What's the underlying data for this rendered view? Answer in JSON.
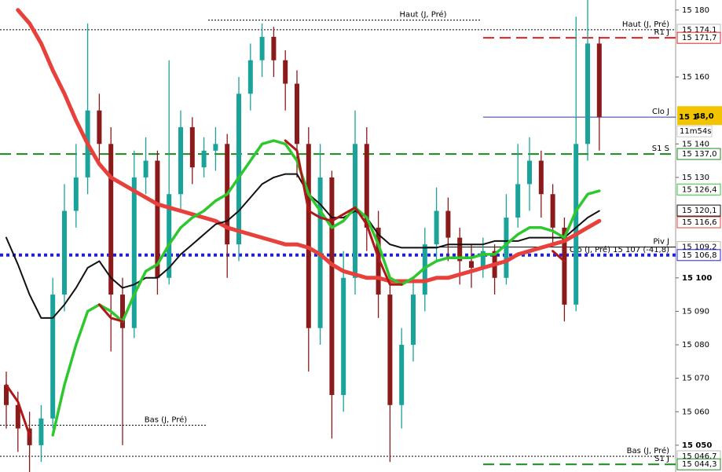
{
  "chart_data": {
    "type": "candlestick",
    "ylim": [
      15042,
      15183
    ],
    "yticks": [
      {
        "value": 15180,
        "label": "15 180"
      },
      {
        "value": 15160,
        "label": "15 160"
      },
      {
        "value": 15140,
        "label": "15 140"
      },
      {
        "value": 15130,
        "label": "15 130"
      },
      {
        "value": 15100,
        "label": "15 100"
      },
      {
        "value": 15090,
        "label": "15 090"
      },
      {
        "value": 15080,
        "label": "15 080"
      },
      {
        "value": 15070,
        "label": "15 070"
      },
      {
        "value": 15060,
        "label": "15 060"
      },
      {
        "value": 15050,
        "label": "15 050"
      }
    ],
    "up_color": "#1aa39a",
    "down_color": "#8b1a1a",
    "ohlc": {
      "open": [
        15068,
        15062,
        15055,
        15050,
        15058,
        15095,
        15120,
        15130,
        15150,
        15140,
        15095,
        15085,
        15130,
        15135,
        15100,
        15125,
        15145,
        15133,
        15138,
        15140,
        15110,
        15155,
        15165,
        15172,
        15165,
        15158,
        15140,
        15085,
        15130,
        15065,
        15100,
        15140,
        15115,
        15095,
        15062,
        15080,
        15095,
        15110,
        15120,
        15112,
        15105,
        15103,
        15108,
        15100,
        15118,
        15128,
        15135,
        15125,
        15115,
        15092,
        15140,
        15170
      ],
      "high": [
        15072,
        15066,
        15060,
        15062,
        15100,
        15128,
        15140,
        15176,
        15155,
        15145,
        15100,
        15138,
        15142,
        15138,
        15165,
        15150,
        15148,
        15142,
        15145,
        15143,
        15160,
        15170,
        15176,
        15175,
        15168,
        15162,
        15145,
        15140,
        15132,
        15108,
        15150,
        15145,
        15120,
        15100,
        15085,
        15100,
        15115,
        15127,
        15124,
        15115,
        15110,
        15112,
        15110,
        15125,
        15140,
        15142,
        15138,
        15128,
        15118,
        15178,
        15183,
        15172
      ],
      "low": [
        15055,
        15048,
        15042,
        15045,
        15055,
        15090,
        15115,
        15125,
        15135,
        15078,
        15050,
        15082,
        15125,
        15095,
        15098,
        15120,
        15128,
        15130,
        15132,
        15100,
        15105,
        15150,
        15160,
        15160,
        15150,
        15130,
        15072,
        15080,
        15052,
        15060,
        15095,
        15108,
        15088,
        15045,
        15055,
        15075,
        15090,
        15105,
        15105,
        15098,
        15097,
        15100,
        15095,
        15098,
        15115,
        15120,
        15118,
        15110,
        15087,
        15090,
        15135,
        15138
      ],
      "close": [
        15062,
        15055,
        15050,
        15058,
        15095,
        15120,
        15130,
        15150,
        15140,
        15095,
        15085,
        15130,
        15135,
        15100,
        15125,
        15145,
        15133,
        15138,
        15140,
        15110,
        15155,
        15165,
        15172,
        15165,
        15158,
        15140,
        15085,
        15130,
        15065,
        15100,
        15140,
        15115,
        15095,
        15062,
        15080,
        15095,
        15110,
        15120,
        15112,
        15105,
        15103,
        15108,
        15100,
        15118,
        15128,
        15135,
        15125,
        15115,
        15092,
        15140,
        15170,
        15148
      ]
    },
    "ma": [
      {
        "color": "#e8403a",
        "width": 5,
        "last_value": 15116.6,
        "last_label": "15 116,6",
        "values": [
          null,
          15180,
          15176,
          15170,
          15162,
          15155,
          15147,
          15140,
          15134,
          15130,
          15128,
          15126,
          15124,
          15122,
          15121,
          15120,
          15119,
          15118,
          15117,
          15115,
          15114,
          15113,
          15112,
          15111,
          15110,
          15110,
          15109,
          15107,
          15104,
          15102,
          15101,
          15100,
          15100,
          15099,
          15099,
          15099,
          15099,
          15100,
          15100,
          15101,
          15102,
          15103,
          15104,
          15105,
          15107,
          15108,
          15109,
          15110,
          15111,
          15113,
          15115,
          15117
        ]
      },
      {
        "color": "#111111",
        "width": 2,
        "last_value": 15120.1,
        "last_label": "15 120,1",
        "values": [
          15112,
          15104,
          15095,
          15088,
          15088,
          15092,
          15097,
          15103,
          15105,
          15100,
          15097,
          15098,
          15100,
          15100,
          15103,
          15107,
          15110,
          15113,
          15116,
          15117,
          15120,
          15124,
          15128,
          15130,
          15131,
          15131,
          15125,
          15122,
          15118,
          15118,
          15120,
          15118,
          15113,
          15110,
          15109,
          15109,
          15109,
          15109,
          15110,
          15110,
          15110,
          15110,
          15111,
          15111,
          15111,
          15112,
          15112,
          15112,
          15112,
          15115,
          15118,
          15120
        ]
      },
      {
        "color": "#2ec82e",
        "width": 3.5,
        "last_value": 15126.4,
        "last_label": "15 126,4",
        "values": [
          null,
          null,
          null,
          null,
          15053,
          15068,
          15080,
          15090,
          15092,
          15090,
          15087,
          15095,
          15102,
          15104,
          15110,
          15115,
          15118,
          15120,
          15123,
          15125,
          15130,
          15135,
          15140,
          15141,
          15140,
          15135,
          15125,
          15120,
          15115,
          15117,
          15121,
          15118,
          15110,
          15100,
          15098,
          15100,
          15103,
          15105,
          15106,
          15106,
          15106,
          15107,
          15107,
          15110,
          15113,
          15115,
          15115,
          15114,
          15112,
          15120,
          15125,
          15126
        ]
      },
      {
        "color": "#b01818",
        "width": 3,
        "values": [
          15068,
          15063,
          15053,
          null,
          null,
          null,
          null,
          null,
          15092,
          15088,
          15087,
          null,
          null,
          null,
          null,
          null,
          null,
          null,
          null,
          null,
          null,
          null,
          null,
          null,
          15141,
          15138,
          15120,
          15118,
          15117,
          15119,
          15121,
          15116,
          15106,
          15098,
          15098,
          null,
          null,
          null,
          null,
          null,
          null,
          null,
          null,
          null,
          null,
          null,
          null,
          15108,
          15105,
          null,
          null,
          null
        ]
      }
    ],
    "levels": [
      {
        "label": "Haut (J, Pré)",
        "value": 15177,
        "color": "#000000",
        "style": "dotted"
      },
      {
        "label": "Haut (J, Pré)",
        "value": 15174.1,
        "value_label": "15 174,1",
        "color": "#000000",
        "style": "dotted"
      },
      {
        "label": "R1 J",
        "value": 15171.7,
        "value_label": "15 171,7",
        "color": "#e02020",
        "style": "dashed"
      },
      {
        "label": "Clo J",
        "value": 15148.0,
        "color": "#2a3aa0",
        "style": "solid"
      },
      {
        "label": "S1 S",
        "value": 15137.0,
        "value_label": "15 137,0",
        "color": "#1a8a1a",
        "style": "dashed"
      },
      {
        "label": "Piv J",
        "value": 15109.2,
        "value_label": "15 109,2",
        "color": "#000000",
        "style": "solid"
      },
      {
        "label": "Clo (J, Pré) 15 107 (-41,8)",
        "value": 15106.8,
        "value_label": "15 106,8",
        "color": "#2020e0",
        "style": "dotted-thick"
      },
      {
        "label": "Bas (J, Pré)",
        "value": 15056,
        "color": "#000000",
        "style": "dotted"
      },
      {
        "label": "Bas (J, Pré)",
        "value": 15046.7,
        "value_label": "15 046,7",
        "color": "#000000",
        "style": "dotted"
      },
      {
        "label": "S1 J",
        "value": 15044.3,
        "value_label": "15 044,3",
        "color": "#1a8a1a",
        "style": "dashed"
      }
    ],
    "current_price": {
      "value": 15148.0,
      "label_small": "15 1",
      "label_big": "48,0",
      "timer": "11m54s"
    }
  }
}
